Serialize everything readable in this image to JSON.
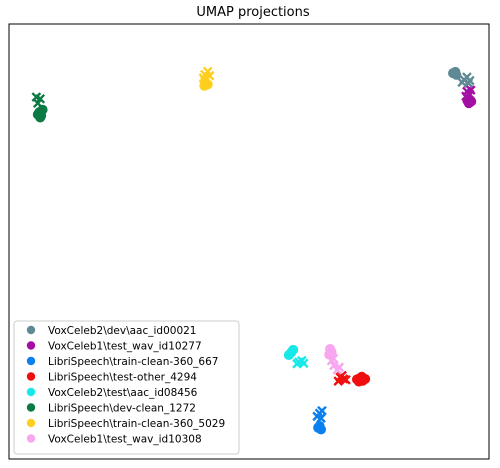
{
  "chart_data": {
    "type": "scatter",
    "title": "UMAP projections",
    "xlabel": "",
    "ylabel": "",
    "grid": false,
    "axis_ticks": false,
    "legend_position": "lower-left",
    "series": [
      {
        "name": "VoxCeleb2\\dev\\aac_id00021",
        "color": "#5f8a95",
        "points": {
          "circle": [
            [
              0.925,
              0.887
            ],
            [
              0.93,
              0.89
            ],
            [
              0.932,
              0.883
            ]
          ],
          "x": [
            [
              0.948,
              0.872
            ],
            [
              0.954,
              0.878
            ],
            [
              0.96,
              0.87
            ],
            [
              0.944,
              0.866
            ],
            [
              0.957,
              0.864
            ]
          ]
        }
      },
      {
        "name": "VoxCeleb1\\test_wav_id10277",
        "color": "#a30ea3",
        "points": {
          "circle": [
            [
              0.958,
              0.818
            ],
            [
              0.963,
              0.822
            ],
            [
              0.955,
              0.824
            ]
          ],
          "x": [
            [
              0.954,
              0.845
            ],
            [
              0.96,
              0.838
            ],
            [
              0.952,
              0.834
            ],
            [
              0.962,
              0.848
            ]
          ]
        }
      },
      {
        "name": "LibriSpeech\\train-clean-360_667",
        "color": "#0a7ff0",
        "points": {
          "circle": [
            [
              0.644,
              0.072
            ],
            [
              0.65,
              0.068
            ],
            [
              0.647,
              0.076
            ]
          ],
          "x": [
            [
              0.647,
              0.105
            ],
            [
              0.652,
              0.111
            ],
            [
              0.642,
              0.098
            ],
            [
              0.65,
              0.094
            ]
          ]
        }
      },
      {
        "name": "LibriSpeech\\test-other_4294",
        "color": "#ef0f0f",
        "points": {
          "circle": [
            [
              0.725,
              0.183
            ],
            [
              0.731,
              0.186
            ],
            [
              0.737,
              0.18
            ],
            [
              0.742,
              0.184
            ],
            [
              0.729,
              0.178
            ],
            [
              0.735,
              0.189
            ]
          ],
          "x": [
            [
              0.69,
              0.188
            ],
            [
              0.697,
              0.184
            ],
            [
              0.702,
              0.182
            ],
            [
              0.686,
              0.179
            ],
            [
              0.694,
              0.192
            ]
          ]
        }
      },
      {
        "name": "VoxCeleb2\\test\\aac_id08456",
        "color": "#17e8e8",
        "points": {
          "circle": [
            [
              0.588,
              0.245
            ],
            [
              0.583,
              0.239
            ],
            [
              0.592,
              0.251
            ]
          ],
          "x": [
            [
              0.604,
              0.223
            ],
            [
              0.61,
              0.226
            ],
            [
              0.6,
              0.219
            ],
            [
              0.614,
              0.22
            ]
          ]
        }
      },
      {
        "name": "LibriSpeech\\dev-clean_1272",
        "color": "#0c7a44",
        "points": {
          "circle": [
            [
              0.063,
              0.797
            ],
            [
              0.067,
              0.789
            ],
            [
              0.06,
              0.792
            ],
            [
              0.07,
              0.803
            ],
            [
              0.065,
              0.785
            ]
          ],
          "x": [
            [
              0.057,
              0.832
            ],
            [
              0.065,
              0.828
            ],
            [
              0.06,
              0.818
            ]
          ]
        }
      },
      {
        "name": "LibriSpeech\\train-clean-360_5029",
        "color": "#ffcf1f",
        "points": {
          "circle": [
            [
              0.41,
              0.865
            ],
            [
              0.414,
              0.861
            ],
            [
              0.407,
              0.858
            ]
          ],
          "x": [
            [
              0.408,
              0.884
            ],
            [
              0.414,
              0.891
            ],
            [
              0.412,
              0.874
            ],
            [
              0.418,
              0.881
            ],
            [
              0.405,
              0.876
            ]
          ]
        }
      },
      {
        "name": "VoxCeleb1\\test_wav_id10308",
        "color": "#f7a6ef",
        "points": {
          "circle": [
            [
              0.669,
              0.253
            ],
            [
              0.672,
              0.246
            ],
            [
              0.667,
              0.24
            ]
          ],
          "x": [
            [
              0.672,
              0.226
            ],
            [
              0.677,
              0.215
            ],
            [
              0.684,
              0.205
            ],
            [
              0.676,
              0.231
            ],
            [
              0.688,
              0.211
            ]
          ]
        }
      }
    ]
  }
}
